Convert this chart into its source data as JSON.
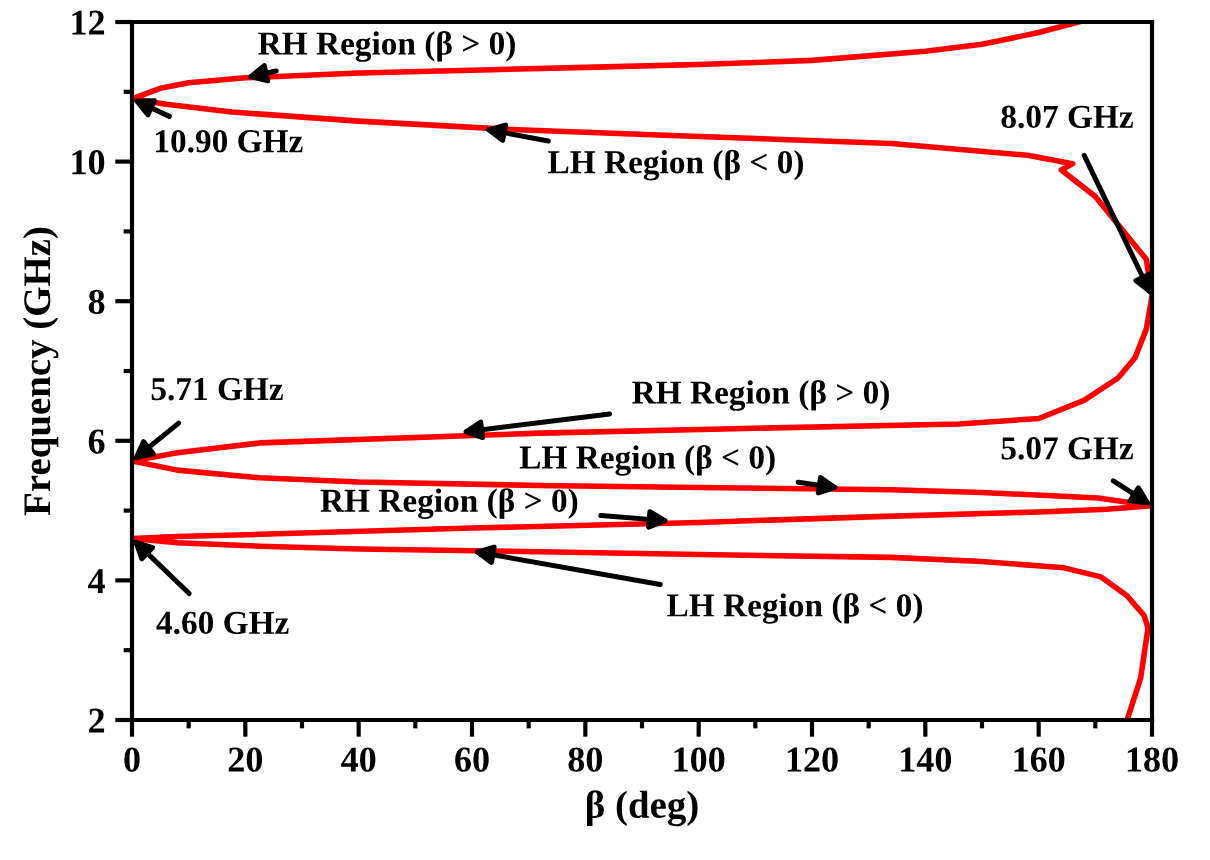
{
  "chart_data": {
    "type": "line",
    "xlabel": "β (deg)",
    "ylabel": "Frequency (GHz)",
    "xlim": [
      0,
      180
    ],
    "ylim": [
      2,
      12
    ],
    "xticks": [
      0,
      {
        "value": 10,
        "label": null
      },
      20,
      {
        "value": 30,
        "label": null
      },
      40,
      {
        "value": 50,
        "label": null
      },
      60,
      {
        "value": 70,
        "label": null
      },
      80,
      {
        "value": 90,
        "label": null
      },
      100,
      {
        "value": 110,
        "label": null
      },
      120,
      {
        "value": 130,
        "label": null
      },
      140,
      {
        "value": 150,
        "label": null
      },
      160,
      {
        "value": 170,
        "label": null
      },
      180
    ],
    "yticks": [
      2,
      {
        "value": 3,
        "label": null
      },
      4,
      {
        "value": 5,
        "label": null
      },
      6,
      {
        "value": 7,
        "label": null
      },
      8,
      {
        "value": 9,
        "label": null
      },
      10,
      {
        "value": 11,
        "label": null
      },
      12
    ],
    "grid": false,
    "legend": false,
    "marker": "none",
    "line_style": "solid",
    "series": [
      {
        "color": "#ff0000",
        "x": [
          175.6,
          178.0,
          179.3,
          178.6,
          177.5,
          175.6,
          171.0,
          164.5,
          150,
          134,
          100,
          72,
          40,
          22.6,
          8,
          0,
          8,
          22.6,
          60,
          100,
          130,
          160,
          172,
          180,
          170.5,
          150,
          134,
          100,
          72,
          40,
          22.6,
          8,
          0,
          8,
          22.6,
          72,
          110,
          146,
          160,
          168,
          174,
          177,
          179,
          180,
          179,
          176,
          170,
          164,
          166,
          158,
          134,
          100,
          67,
          40,
          17.6,
          6,
          0,
          5,
          10,
          20,
          40,
          60,
          80,
          100,
          120,
          140,
          150,
          160,
          167
        ],
        "values": [
          2,
          2.6,
          3.32,
          3.5,
          3.6,
          3.78,
          4.05,
          4.18,
          4.27,
          4.33,
          4.37,
          4.41,
          4.45,
          4.49,
          4.54,
          4.6,
          4.63,
          4.66,
          4.75,
          4.83,
          4.91,
          4.98,
          5.02,
          5.07,
          5.18,
          5.26,
          5.3,
          5.33,
          5.36,
          5.41,
          5.47,
          5.58,
          5.71,
          5.83,
          5.97,
          6.11,
          6.18,
          6.24,
          6.32,
          6.58,
          6.9,
          7.19,
          7.6,
          8.07,
          8.6,
          8.9,
          9.5,
          9.88,
          9.97,
          10.09,
          10.26,
          10.36,
          10.46,
          10.58,
          10.71,
          10.82,
          10.9,
          11.05,
          11.13,
          11.2,
          11.27,
          11.31,
          11.35,
          11.39,
          11.45,
          11.58,
          11.68,
          11.85,
          12
        ]
      }
    ],
    "annotations": [
      {
        "text": "RH Region (β > 0)",
        "x": 20,
        "y": 11.2
      },
      {
        "text": "10.90 GHz",
        "x": 0,
        "y": 10.9
      },
      {
        "text": "LH Region (β < 0)",
        "x": 62,
        "y": 10.47
      },
      {
        "text": "8.07 GHz",
        "x": 180,
        "y": 8.07
      },
      {
        "text": "5.71 GHz",
        "x": 0,
        "y": 5.71
      },
      {
        "text": "RH Region (β > 0)",
        "x": 58,
        "y": 6.12
      },
      {
        "text": "LH Region (β < 0)",
        "x": 125,
        "y": 5.32
      },
      {
        "text": "5.07 GHz",
        "x": 180,
        "y": 5.07
      },
      {
        "text": "RH Region (β > 0)",
        "x": 95,
        "y": 4.85
      },
      {
        "text": "LH Region (β < 0)",
        "x": 60,
        "y": 4.42
      },
      {
        "text": "4.60 GHz",
        "x": 0,
        "y": 4.6
      }
    ]
  }
}
